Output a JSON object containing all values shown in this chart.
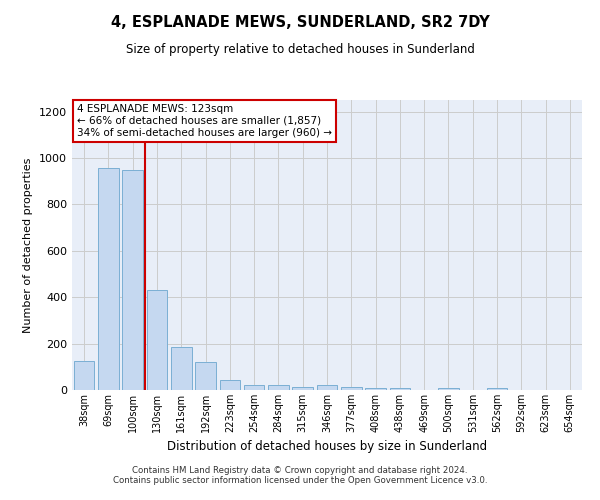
{
  "title": "4, ESPLANADE MEWS, SUNDERLAND, SR2 7DY",
  "subtitle": "Size of property relative to detached houses in Sunderland",
  "xlabel": "Distribution of detached houses by size in Sunderland",
  "ylabel": "Number of detached properties",
  "categories": [
    "38sqm",
    "69sqm",
    "100sqm",
    "130sqm",
    "161sqm",
    "192sqm",
    "223sqm",
    "254sqm",
    "284sqm",
    "315sqm",
    "346sqm",
    "377sqm",
    "408sqm",
    "438sqm",
    "469sqm",
    "500sqm",
    "531sqm",
    "562sqm",
    "592sqm",
    "623sqm",
    "654sqm"
  ],
  "values": [
    125,
    955,
    950,
    430,
    185,
    120,
    45,
    20,
    20,
    15,
    20,
    15,
    10,
    10,
    0,
    10,
    0,
    10,
    0,
    0,
    0
  ],
  "bar_color": "#c5d8f0",
  "bar_edge_color": "#7bafd4",
  "red_line_x": 2.5,
  "annotation_line1": "4 ESPLANADE MEWS: 123sqm",
  "annotation_line2": "← 66% of detached houses are smaller (1,857)",
  "annotation_line3": "34% of semi-detached houses are larger (960) →",
  "annotation_box_color": "#ffffff",
  "annotation_box_edge": "#cc0000",
  "ylim": [
    0,
    1250
  ],
  "yticks": [
    0,
    200,
    400,
    600,
    800,
    1000,
    1200
  ],
  "grid_color": "#cccccc",
  "axes_bg_color": "#e8eef8",
  "background_color": "#ffffff",
  "footer1": "Contains HM Land Registry data © Crown copyright and database right 2024.",
  "footer2": "Contains public sector information licensed under the Open Government Licence v3.0."
}
